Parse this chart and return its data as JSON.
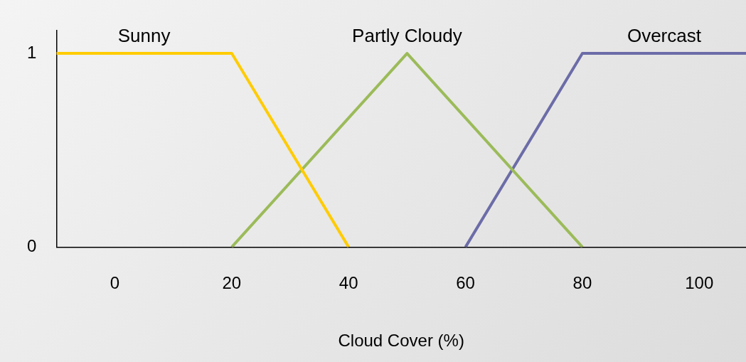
{
  "chart_data": {
    "type": "line",
    "xlabel": "Cloud Cover (%)",
    "xlim": [
      -10,
      108
    ],
    "xticks": [
      0,
      20,
      40,
      60,
      80,
      100
    ],
    "ylim": [
      0,
      1.12
    ],
    "yticks": [
      0,
      1
    ],
    "grid": false,
    "legend": false,
    "marker": "none",
    "line_style": "solid",
    "series": [
      {
        "name": "Sunny",
        "color": "#ffcc00",
        "x": [
          -10,
          20,
          40
        ],
        "values": [
          1,
          1,
          0
        ]
      },
      {
        "name": "Partly Cloudy",
        "color": "#9bbb59",
        "x": [
          20,
          50,
          80
        ],
        "values": [
          0,
          1,
          0
        ]
      },
      {
        "name": "Overcast",
        "color": "#6c6ca8",
        "x": [
          60,
          80,
          108
        ],
        "values": [
          0,
          1,
          1
        ]
      }
    ]
  }
}
